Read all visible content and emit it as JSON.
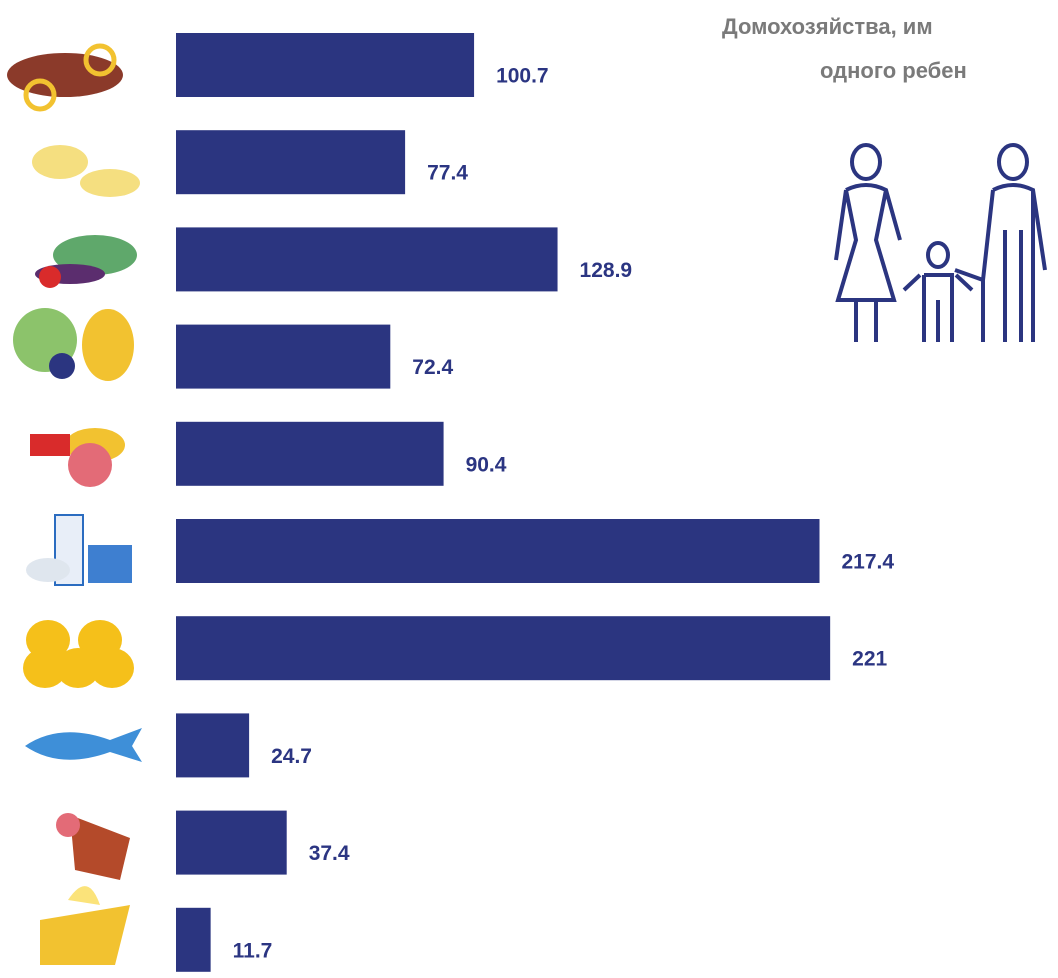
{
  "chart_data": {
    "type": "bar",
    "orientation": "horizontal",
    "title_lines": [
      "Домохозяйства, им",
      "одного ребен"
    ],
    "categories": [
      null,
      null,
      null,
      null,
      null,
      null,
      null,
      null,
      null,
      null
    ],
    "values": [
      100.7,
      77.4,
      128.9,
      72.4,
      90.4,
      217.4,
      221,
      24.7,
      37.4,
      11.7
    ],
    "color": "#2b3580",
    "xlim": [
      0,
      295
    ]
  }
}
